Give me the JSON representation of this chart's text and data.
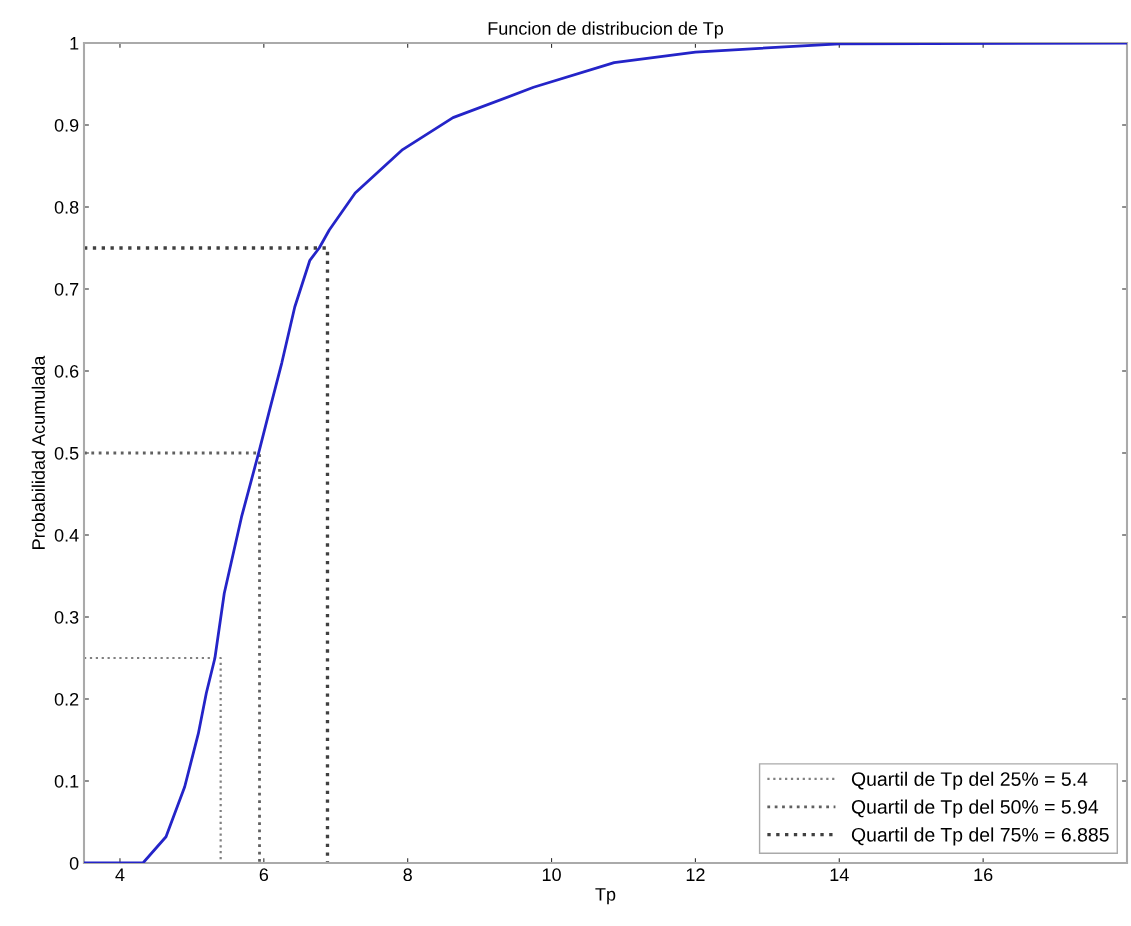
{
  "chart_data": {
    "type": "line",
    "title": "Funcion de distribucion de Tp",
    "xlabel": "Tp",
    "ylabel": "Probabilidad Acumulada",
    "xlim": [
      3.5,
      18
    ],
    "ylim": [
      0,
      1
    ],
    "xticks": [
      4,
      6,
      8,
      10,
      12,
      14,
      16
    ],
    "yticks": [
      0,
      {
        "value": 0.1,
        "label": "0.1"
      },
      {
        "value": 0.2,
        "label": "0.2"
      },
      {
        "value": 0.3,
        "label": "0.3"
      },
      {
        "value": 0.4,
        "label": "0.4"
      },
      {
        "value": 0.5,
        "label": "0.5"
      },
      {
        "value": 0.6,
        "label": "0.6"
      },
      {
        "value": 0.7,
        "label": "0.7"
      },
      {
        "value": 0.8,
        "label": "0.8"
      },
      {
        "value": 0.9,
        "label": "0.9"
      },
      1
    ],
    "grid": false,
    "legend": "bottom right",
    "marker": "none",
    "series": [
      {
        "color": "#2424c8",
        "line_style": "solid",
        "x": [
          3.5,
          4.32,
          4.64,
          4.9,
          5.09,
          5.2,
          5.32,
          5.45,
          5.69,
          5.94,
          6.07,
          6.25,
          6.43,
          6.64,
          6.77,
          6.91,
          7.27,
          7.93,
          8.63,
          9.75,
          10.87,
          12,
          14,
          18
        ],
        "values": [
          0,
          0,
          0.032,
          0.093,
          0.158,
          0.207,
          0.25,
          0.329,
          0.422,
          0.504,
          0.549,
          0.61,
          0.678,
          0.735,
          0.75,
          0.772,
          0.817,
          0.87,
          0.909,
          0.946,
          0.976,
          0.989,
          0.999,
          1
        ]
      },
      {
        "name": "Quartil de Tp del 25% = 5.4",
        "color": "#808080",
        "line_style": "dotted",
        "x": [
          3.5,
          5.4,
          5.4
        ],
        "values": [
          0.25,
          0.25,
          0
        ]
      },
      {
        "name": "Quartil de Tp del 50% = 5.94",
        "color": "#606060",
        "line_style": "dotted",
        "x": [
          3.5,
          5.94,
          5.94
        ],
        "values": [
          0.5,
          0.5,
          0
        ]
      },
      {
        "name": "Quartil de Tp del 75% = 6.885",
        "color": "#404040",
        "line_style": "dotted",
        "x": [
          3.5,
          6.885,
          6.885
        ],
        "values": [
          0.75,
          0.75,
          0
        ]
      }
    ]
  }
}
